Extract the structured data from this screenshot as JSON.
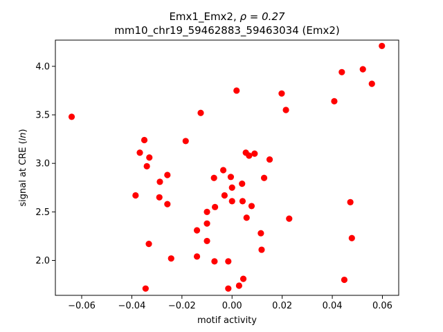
{
  "chart_data": {
    "type": "scatter",
    "title_line1": "Emx1_Emx2, ",
    "title_rho": "ρ = 0.27",
    "title_line2": "mm10_chr19_59462883_59463034 (Emx2)",
    "xlabel": "motif activity",
    "ylabel_prefix": "signal at CRE (",
    "ylabel_italic": "ln",
    "ylabel_suffix": ")",
    "xlim": [
      -0.0705,
      0.0665
    ],
    "ylim": [
      1.64,
      4.27
    ],
    "xticks": [
      -0.06,
      -0.04,
      -0.02,
      0.0,
      0.02,
      0.04,
      0.06
    ],
    "xtick_labels": [
      "−0.06",
      "−0.04",
      "−0.02",
      "0.00",
      "0.02",
      "0.04",
      "0.06"
    ],
    "yticks": [
      2.0,
      2.5,
      3.0,
      3.5,
      4.0
    ],
    "ytick_labels": [
      "2.0",
      "2.5",
      "3.0",
      "3.5",
      "4.0"
    ],
    "marker_color": "#ff0000",
    "points": [
      {
        "x": -0.064,
        "y": 3.48
      },
      {
        "x": -0.0385,
        "y": 2.67
      },
      {
        "x": -0.0368,
        "y": 3.11
      },
      {
        "x": -0.035,
        "y": 3.24
      },
      {
        "x": -0.034,
        "y": 2.97
      },
      {
        "x": -0.033,
        "y": 3.06
      },
      {
        "x": -0.0332,
        "y": 2.17
      },
      {
        "x": -0.0345,
        "y": 1.71
      },
      {
        "x": -0.029,
        "y": 2.65
      },
      {
        "x": -0.0288,
        "y": 2.81
      },
      {
        "x": -0.0258,
        "y": 2.88
      },
      {
        "x": -0.0258,
        "y": 2.58
      },
      {
        "x": -0.0243,
        "y": 2.02
      },
      {
        "x": -0.0185,
        "y": 3.23
      },
      {
        "x": -0.0125,
        "y": 3.52
      },
      {
        "x": -0.014,
        "y": 2.31
      },
      {
        "x": -0.014,
        "y": 2.04
      },
      {
        "x": -0.01,
        "y": 2.5
      },
      {
        "x": -0.01,
        "y": 2.38
      },
      {
        "x": -0.01,
        "y": 2.2
      },
      {
        "x": -0.0068,
        "y": 2.55
      },
      {
        "x": -0.0072,
        "y": 2.85
      },
      {
        "x": -0.007,
        "y": 1.99
      },
      {
        "x": -0.0035,
        "y": 2.93
      },
      {
        "x": -0.003,
        "y": 2.67
      },
      {
        "x": -0.0015,
        "y": 1.99
      },
      {
        "x": -0.0015,
        "y": 1.71
      },
      {
        "x": -0.0005,
        "y": 2.86
      },
      {
        "x": 0.0,
        "y": 2.75
      },
      {
        "x": 0.0,
        "y": 2.61
      },
      {
        "x": 0.0018,
        "y": 3.75
      },
      {
        "x": 0.0028,
        "y": 1.74
      },
      {
        "x": 0.004,
        "y": 2.79
      },
      {
        "x": 0.0042,
        "y": 2.61
      },
      {
        "x": 0.0045,
        "y": 1.81
      },
      {
        "x": 0.0055,
        "y": 3.11
      },
      {
        "x": 0.0058,
        "y": 2.44
      },
      {
        "x": 0.0068,
        "y": 3.08
      },
      {
        "x": 0.0078,
        "y": 2.56
      },
      {
        "x": 0.009,
        "y": 3.1
      },
      {
        "x": 0.0115,
        "y": 2.28
      },
      {
        "x": 0.0118,
        "y": 2.11
      },
      {
        "x": 0.0128,
        "y": 2.85
      },
      {
        "x": 0.015,
        "y": 3.04
      },
      {
        "x": 0.0198,
        "y": 3.72
      },
      {
        "x": 0.0215,
        "y": 3.55
      },
      {
        "x": 0.0228,
        "y": 2.43
      },
      {
        "x": 0.0408,
        "y": 3.64
      },
      {
        "x": 0.0438,
        "y": 3.94
      },
      {
        "x": 0.0448,
        "y": 1.8
      },
      {
        "x": 0.0472,
        "y": 2.6
      },
      {
        "x": 0.0478,
        "y": 2.23
      },
      {
        "x": 0.0522,
        "y": 3.97
      },
      {
        "x": 0.0558,
        "y": 3.82
      },
      {
        "x": 0.0598,
        "y": 4.21
      }
    ]
  }
}
